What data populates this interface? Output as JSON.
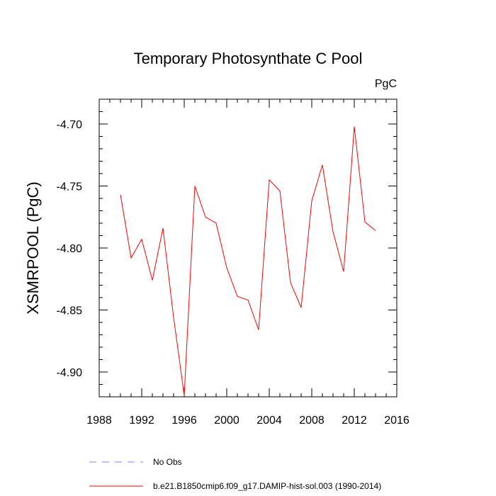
{
  "chart_data": {
    "type": "line",
    "title": "Temporary Photosynthate C Pool",
    "units_label": "PgC",
    "ylabel": "XSMRPOOL  (PgC)",
    "xlabel": "",
    "xlim": [
      1988,
      2016
    ],
    "ylim": [
      -4.92,
      -4.68
    ],
    "x_ticks": [
      1988,
      1992,
      1996,
      2000,
      2004,
      2008,
      2012,
      2016
    ],
    "y_ticks": [
      -4.9,
      -4.85,
      -4.8,
      -4.75,
      -4.7
    ],
    "x_tick_labels": [
      "1988",
      "1992",
      "1996",
      "2000",
      "2004",
      "2008",
      "2012",
      "2016"
    ],
    "y_tick_labels": [
      "-4.90",
      "-4.85",
      "-4.80",
      "-4.75",
      "-4.70"
    ],
    "grid": false,
    "legend_position": "bottom",
    "series": [
      {
        "name": "b.e21.B1850cmip6.f09_g17.DAMIP-hist-sol.003 (1990-2014)",
        "color": "#ff0000",
        "style": "solid",
        "x": [
          1990,
          1991,
          1992,
          1993,
          1994,
          1995,
          1996,
          1997,
          1998,
          1999,
          2000,
          2001,
          2002,
          2003,
          2004,
          2005,
          2006,
          2007,
          2008,
          2009,
          2010,
          2011,
          2012,
          2013,
          2014
        ],
        "y": [
          -4.757,
          -4.808,
          -4.793,
          -4.826,
          -4.784,
          -4.856,
          -4.919,
          -4.75,
          -4.775,
          -4.78,
          -4.816,
          -4.839,
          -4.842,
          -4.866,
          -4.745,
          -4.754,
          -4.828,
          -4.848,
          -4.762,
          -4.733,
          -4.787,
          -4.819,
          -4.702,
          -4.779,
          -4.786
        ]
      }
    ],
    "legend": [
      {
        "label": "No Obs",
        "color": "#8080ff",
        "style": "dashed"
      },
      {
        "label": "b.e21.B1850cmip6.f09_g17.DAMIP-hist-sol.003 (1990-2014)",
        "color": "#ff0000",
        "style": "solid"
      }
    ]
  }
}
